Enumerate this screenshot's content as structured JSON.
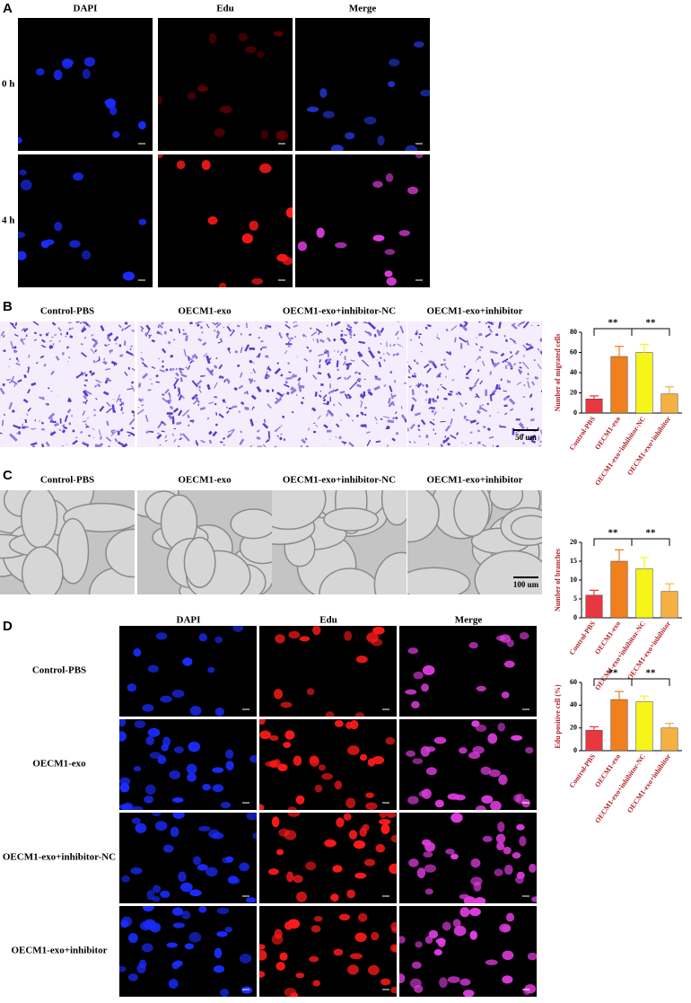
{
  "panel_a": {
    "label": "A",
    "columns": [
      "DAPI",
      "Edu",
      "Merge"
    ],
    "rows": [
      "0 h",
      "4 h"
    ]
  },
  "panel_b": {
    "label": "B",
    "columns": [
      "Control-PBS",
      "OECM1-exo",
      "OECM1-exo+inhibitor-NC",
      "OECM1-exo+inhibitor"
    ],
    "scale_bar": "50 um"
  },
  "panel_c": {
    "label": "C",
    "columns": [
      "Control-PBS",
      "OECM1-exo",
      "OECM1-exo+inhibitor-NC",
      "OECM1-exo+inhibitor"
    ],
    "scale_bar": "100 um"
  },
  "panel_d": {
    "label": "D",
    "columns": [
      "DAPI",
      "Edu",
      "Merge"
    ],
    "rows": [
      "Control-PBS",
      "OECM1-exo",
      "OECM1-exo+inhibitor-NC",
      "OECM1-exo+inhibitor"
    ]
  },
  "chart_data": [
    {
      "type": "bar",
      "y_label": "Number of migrated cells",
      "categories": [
        "Control-PBS",
        "OECM1-exo",
        "OECM1-exo+inhibitor-NC",
        "OECM1-exo+inhibitor"
      ],
      "values": [
        14,
        56,
        60,
        19
      ],
      "errors": [
        3,
        10,
        8,
        7
      ],
      "colors": [
        "#e8383f",
        "#f07f1e",
        "#f5f51a",
        "#f5b042"
      ],
      "ylim": [
        0,
        80
      ],
      "yticks": [
        0,
        20,
        40,
        60,
        80
      ],
      "annotations": [
        "**",
        "**"
      ]
    },
    {
      "type": "bar",
      "y_label": "Number of branches",
      "categories": [
        "Control-PBS",
        "OECM1-exo",
        "OECM1-exo+inhibitor-NC",
        "OECM1-exo+inhibitor"
      ],
      "values": [
        6,
        15,
        13,
        7
      ],
      "errors": [
        1.3,
        3,
        3,
        2
      ],
      "colors": [
        "#e8383f",
        "#f07f1e",
        "#f5f51a",
        "#f5b042"
      ],
      "ylim": [
        0,
        20
      ],
      "yticks": [
        0,
        5,
        10,
        15,
        20
      ],
      "annotations": [
        "**",
        "**"
      ]
    },
    {
      "type": "bar",
      "y_label": "Edu positive cell (%)",
      "categories": [
        "Control-PBS",
        "OECM1-exo",
        "OECM1-exo+inhibitor-NC",
        "OECM1-exo+inhibitor"
      ],
      "values": [
        18,
        45,
        43,
        20
      ],
      "errors": [
        3,
        7,
        5,
        4
      ],
      "colors": [
        "#e8383f",
        "#f07f1e",
        "#f5f51a",
        "#f5b042"
      ],
      "ylim": [
        0,
        60
      ],
      "yticks": [
        0,
        20,
        40,
        60
      ],
      "annotations": [
        "**",
        "**"
      ]
    }
  ]
}
